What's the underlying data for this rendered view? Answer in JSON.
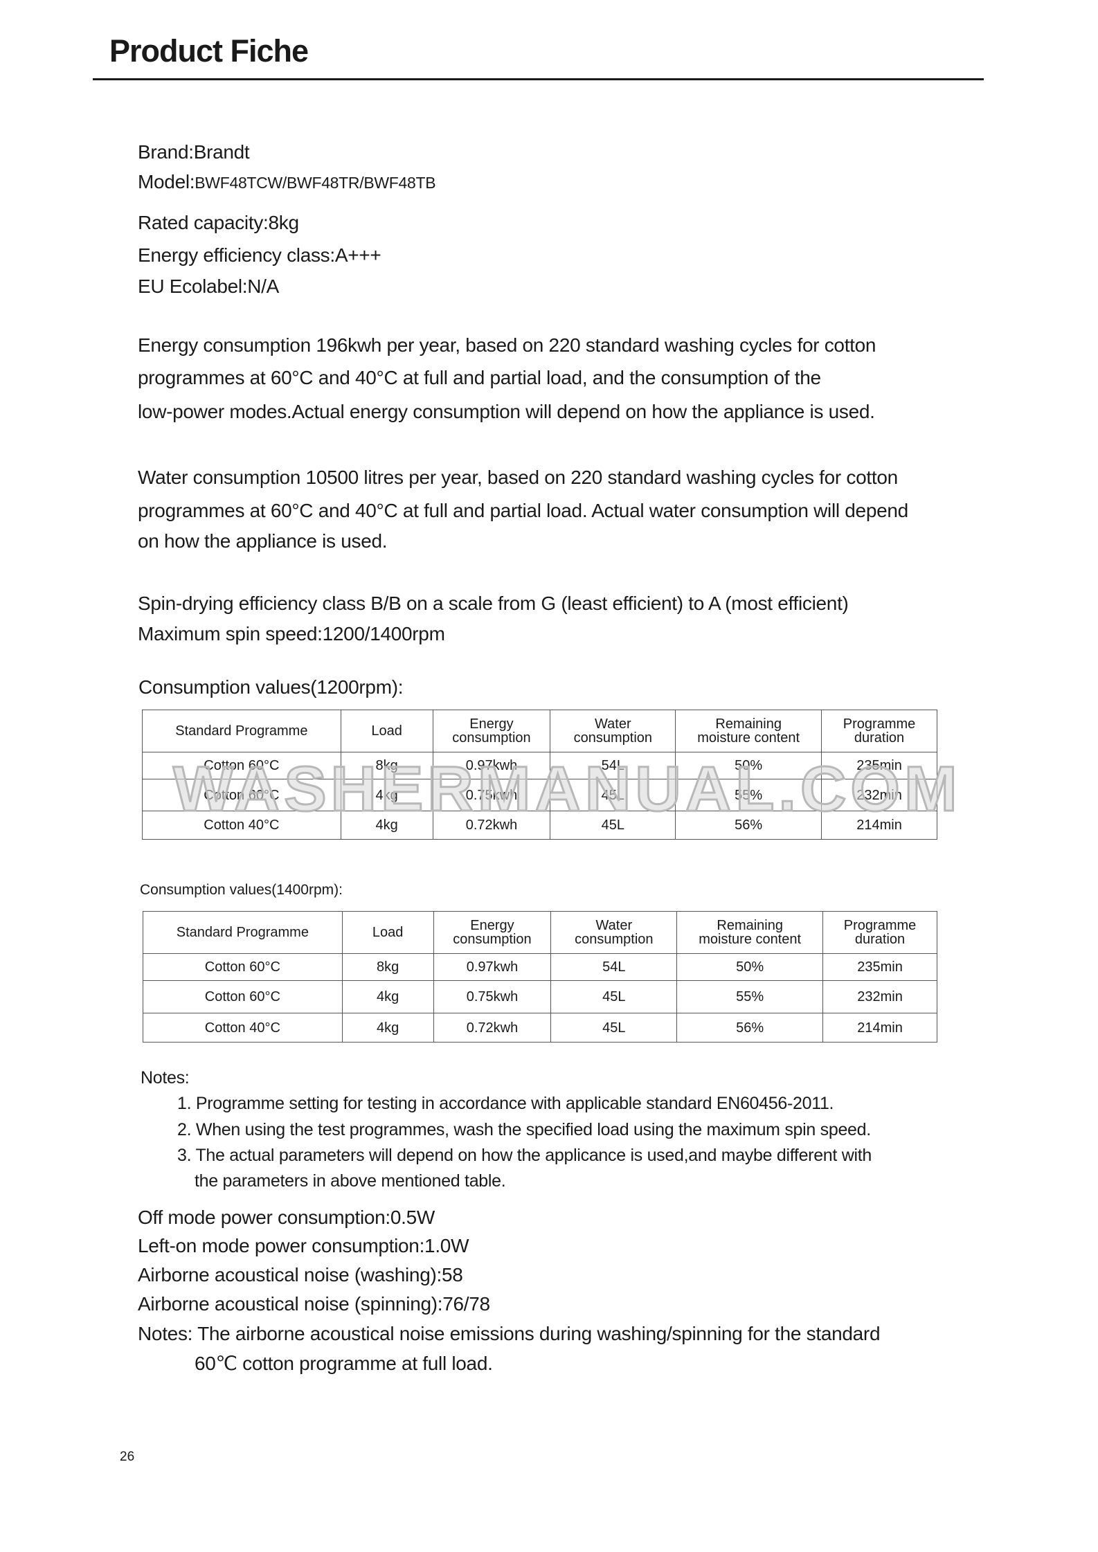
{
  "header": {
    "title": "Product Fiche"
  },
  "info": {
    "brand": "Brand:Brandt",
    "model_label": "Model:",
    "model_value": "BWF48TCW/BWF48TR/BWF48TB",
    "capacity": "Rated capacity:8kg",
    "energy_class": "Energy efficiency class:A+++",
    "ecolabel": "EU Ecolabel:N/A"
  },
  "energy_paragraph": [
    "Energy consumption 196kwh per year, based on 220 standard washing cycles for cotton",
    "programmes at 60°C and 40°C at full and partial load, and the consumption of the",
    "low-power modes.Actual energy consumption will depend on how the appliance is used."
  ],
  "water_paragraph": [
    "Water consumption 10500 litres per year, based on 220 standard washing cycles for cotton",
    "programmes at 60°C and 40°C at full and partial load. Actual water consumption will depend",
    "on how the appliance is used."
  ],
  "spin": [
    "Spin-drying efficiency class B/B on a scale from G (least efficient) to A (most efficient)",
    "Maximum spin speed:1200/1400rpm"
  ],
  "table1": {
    "caption": "Consumption values(1200rpm):",
    "headers": [
      [
        "Standard Programme",
        ""
      ],
      [
        "Load",
        ""
      ],
      [
        "Energy",
        "consumption"
      ],
      [
        "Water",
        "consumption"
      ],
      [
        "Remaining",
        "moisture content"
      ],
      [
        "Programme",
        "duration"
      ]
    ],
    "rows": [
      [
        "Cotton  60°C",
        "8kg",
        "0.97kwh",
        "54L",
        "50%",
        "235min"
      ],
      [
        "Cotton  60°C",
        "4kg",
        "0.75kwh",
        "45L",
        "55%",
        "232min"
      ],
      [
        "Cotton  40°C",
        "4kg",
        "0.72kwh",
        "45L",
        "56%",
        "214min"
      ]
    ]
  },
  "table2": {
    "caption": "Consumption values(1400rpm):",
    "headers": [
      [
        "Standard Programme",
        ""
      ],
      [
        "Load",
        ""
      ],
      [
        "Energy",
        "consumption"
      ],
      [
        "Water",
        "consumption"
      ],
      [
        "Remaining",
        "moisture content"
      ],
      [
        "Programme",
        "duration"
      ]
    ],
    "rows": [
      [
        "Cotton  60°C",
        "8kg",
        "0.97kwh",
        "54L",
        "50%",
        "235min"
      ],
      [
        "Cotton  60°C",
        "4kg",
        "0.75kwh",
        "45L",
        "55%",
        "232min"
      ],
      [
        "Cotton  40°C",
        "4kg",
        "0.72kwh",
        "45L",
        "56%",
        "214min"
      ]
    ]
  },
  "notes": {
    "title": "Notes:",
    "items": [
      "1. Programme setting for testing in accordance with applicable standard EN60456-2011.",
      "2. When using the test programmes, wash the specified load using the maximum spin speed.",
      "3.  The actual  parameters  will depend on how the applicance is used,and maybe different with",
      "   the parameters in above mentioned table."
    ]
  },
  "power": [
    "Off mode power consumption:0.5W",
    "Left-on mode power consumption:1.0W",
    "Airborne acoustical noise (washing):58",
    "Airborne acoustical noise (spinning):76/78",
    "Notes: The airborne acoustical noise emissions during washing/spinning for the standard",
    "60℃ cotton programme at full load."
  ],
  "watermark": "WASHERMANUAL.COM",
  "page_number": "26"
}
